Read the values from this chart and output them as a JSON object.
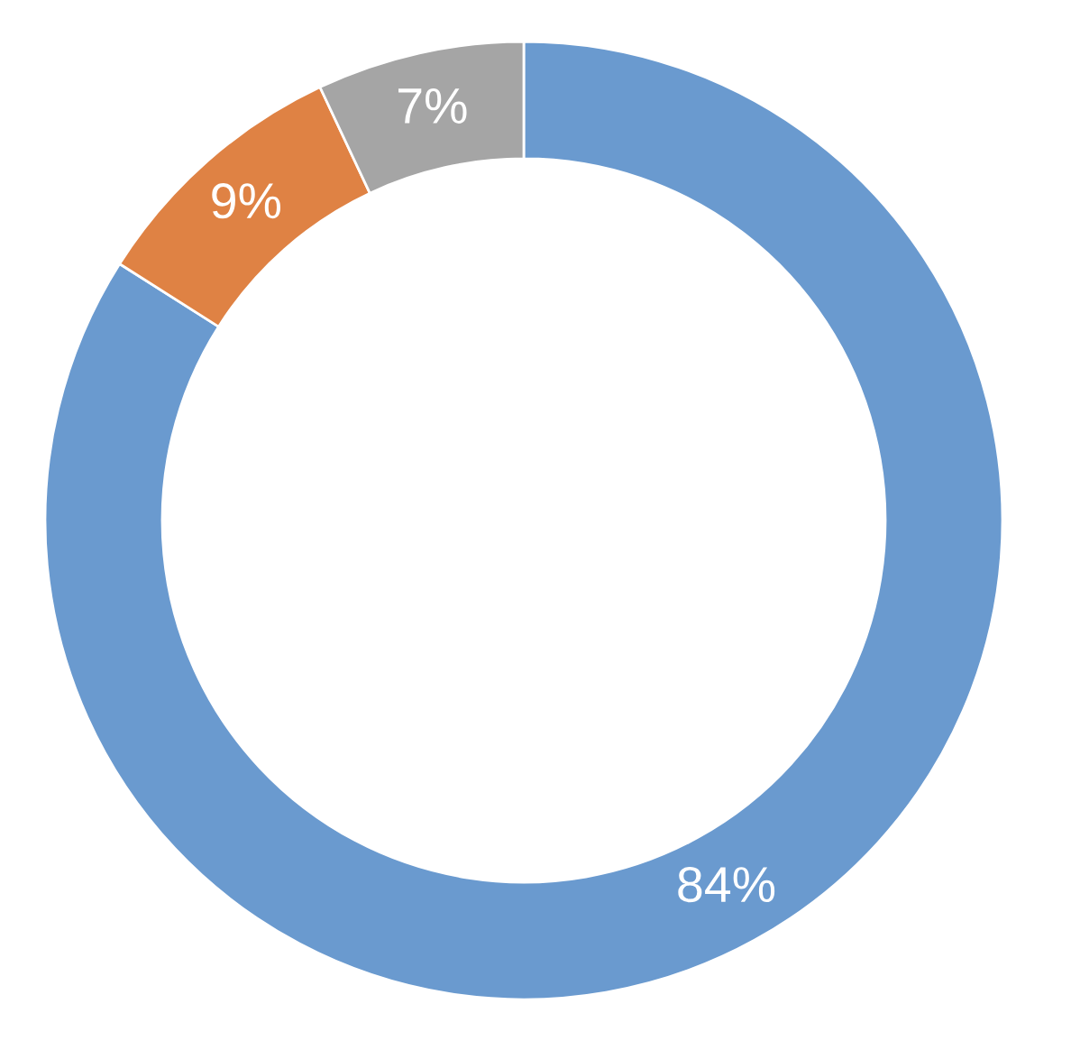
{
  "chart_data": {
    "type": "donut",
    "categories": [
      null,
      null,
      null
    ],
    "values": [
      84,
      9,
      7
    ],
    "colors": [
      "#6a9acf",
      "#df8244",
      "#a5a5a5"
    ],
    "value_labels": [
      "84%",
      "9%",
      "7%"
    ]
  }
}
